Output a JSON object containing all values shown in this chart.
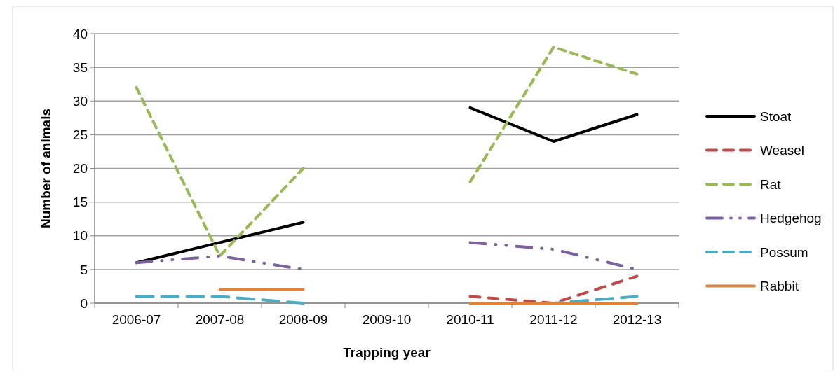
{
  "chart_data": {
    "type": "line",
    "xlabel": "Trapping year",
    "ylabel": "Number of animals",
    "categories": [
      "2006-07",
      "2007-08",
      "2008-09",
      "2009-10",
      "2010-11",
      "2011-12",
      "2012-13"
    ],
    "series": [
      {
        "name": "Stoat",
        "color": "#000000",
        "line_style": "solid",
        "values": [
          6,
          9,
          12,
          null,
          29,
          24,
          28
        ]
      },
      {
        "name": "Weasel",
        "color": "#be4b48",
        "line_style": "dashed",
        "values": [
          null,
          null,
          null,
          null,
          1,
          0,
          4
        ]
      },
      {
        "name": "Rat",
        "color": "#98b954",
        "line_style": "dashed",
        "values": [
          32,
          7,
          20,
          null,
          18,
          38,
          34
        ]
      },
      {
        "name": "Hedgehog",
        "color": "#7d60a0",
        "line_style": "dashdotdot",
        "values": [
          6,
          7,
          5,
          null,
          9,
          8,
          5
        ]
      },
      {
        "name": "Possum",
        "color": "#4bacc6",
        "line_style": "dashed",
        "values": [
          1,
          1,
          0,
          null,
          0,
          0,
          1
        ]
      },
      {
        "name": "Rabbit",
        "color": "#e0823a",
        "line_style": "solid",
        "values": [
          null,
          2,
          2,
          null,
          0,
          0,
          0
        ]
      }
    ],
    "ylim": [
      0,
      40
    ],
    "yticks": [
      0,
      5,
      10,
      15,
      20,
      25,
      30,
      35,
      40
    ],
    "grid": "y",
    "legend": "right"
  }
}
